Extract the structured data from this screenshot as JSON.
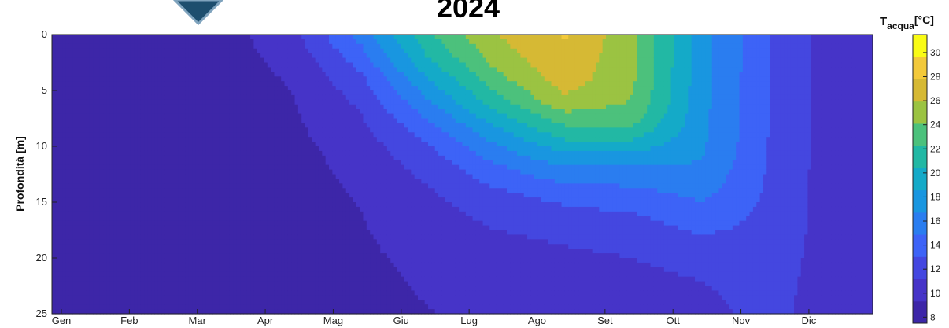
{
  "chart_data": {
    "type": "heatmap",
    "title": "2024",
    "ylabel": "Profondità [m]",
    "xlabel": "",
    "x_tick_labels": [
      "Gen",
      "Feb",
      "Mar",
      "Apr",
      "Mag",
      "Giu",
      "Lug",
      "Ago",
      "Set",
      "Ott",
      "Nov",
      "Dic"
    ],
    "y_ticks": [
      0,
      5,
      10,
      15,
      20,
      25
    ],
    "ylim": [
      0,
      25
    ],
    "y_reversed": true,
    "colorbar": {
      "label_main": "T",
      "label_sub": "acqua",
      "label_unit": "[°C]",
      "ticks": [
        8,
        10,
        12,
        14,
        16,
        18,
        20,
        22,
        24,
        26,
        28,
        30
      ],
      "range": [
        7.5,
        31.5
      ],
      "colors": [
        "#3d26a8",
        "#4634c8",
        "#4447e0",
        "#3d63f7",
        "#2a7df0",
        "#1996e0",
        "#14aac8",
        "#22b8a4",
        "#4cc17c",
        "#9bc342",
        "#d6b934",
        "#f3c93a",
        "#f9fb15"
      ]
    },
    "months": [
      "Gen",
      "Feb",
      "Mar",
      "Apr",
      "Mag",
      "Giu",
      "Lug",
      "Ago",
      "Set",
      "Ott",
      "Nov",
      "Dic"
    ],
    "depths": [
      0,
      2,
      4,
      6,
      8,
      10,
      12,
      14,
      16,
      18,
      20,
      22,
      25
    ],
    "temperature": [
      [
        8.3,
        8.3,
        8.2,
        8.2,
        8.2,
        8.2,
        8.2,
        8.2,
        8.2,
        8.2,
        8.2,
        8.2,
        8.2
      ],
      [
        8.0,
        8.0,
        8.0,
        8.0,
        8.0,
        8.0,
        8.0,
        8.0,
        8.0,
        8.0,
        8.0,
        8.0,
        8.0
      ],
      [
        8.6,
        8.5,
        8.4,
        8.3,
        8.3,
        8.2,
        8.2,
        8.2,
        8.2,
        8.2,
        8.2,
        8.2,
        8.2
      ],
      [
        10.5,
        10.0,
        9.5,
        9.2,
        9.0,
        8.8,
        8.7,
        8.6,
        8.6,
        8.5,
        8.5,
        8.5,
        8.5
      ],
      [
        15.5,
        14.0,
        12.5,
        11.5,
        10.8,
        10.2,
        9.8,
        9.5,
        9.3,
        9.2,
        9.1,
        9.0,
        9.0
      ],
      [
        22.0,
        20.5,
        18.5,
        16.5,
        14.5,
        12.8,
        11.8,
        11.0,
        10.5,
        10.0,
        9.7,
        9.5,
        9.3
      ],
      [
        26.0,
        25.0,
        23.5,
        21.5,
        19.0,
        16.5,
        14.5,
        12.8,
        11.8,
        11.0,
        10.4,
        10.0,
        9.7
      ],
      [
        28.0,
        27.5,
        27.0,
        25.5,
        22.5,
        19.5,
        16.5,
        14.0,
        12.5,
        11.5,
        10.8,
        10.3,
        9.9
      ],
      [
        24.5,
        24.5,
        24.3,
        24.0,
        22.5,
        19.5,
        16.5,
        14.5,
        13.0,
        12.0,
        11.2,
        10.6,
        10.1
      ],
      [
        17.5,
        17.5,
        17.4,
        17.3,
        17.2,
        17.0,
        16.5,
        15.5,
        14.2,
        13.0,
        12.0,
        11.2,
        10.6
      ],
      [
        13.0,
        13.0,
        13.0,
        13.0,
        13.0,
        12.9,
        12.8,
        12.7,
        12.6,
        12.5,
        12.3,
        12.0,
        11.8
      ],
      [
        10.0,
        10.0,
        10.0,
        10.0,
        10.0,
        10.0,
        10.0,
        10.0,
        10.0,
        10.0,
        10.0,
        10.0,
        10.0
      ]
    ],
    "grid": false,
    "legend": "none"
  }
}
